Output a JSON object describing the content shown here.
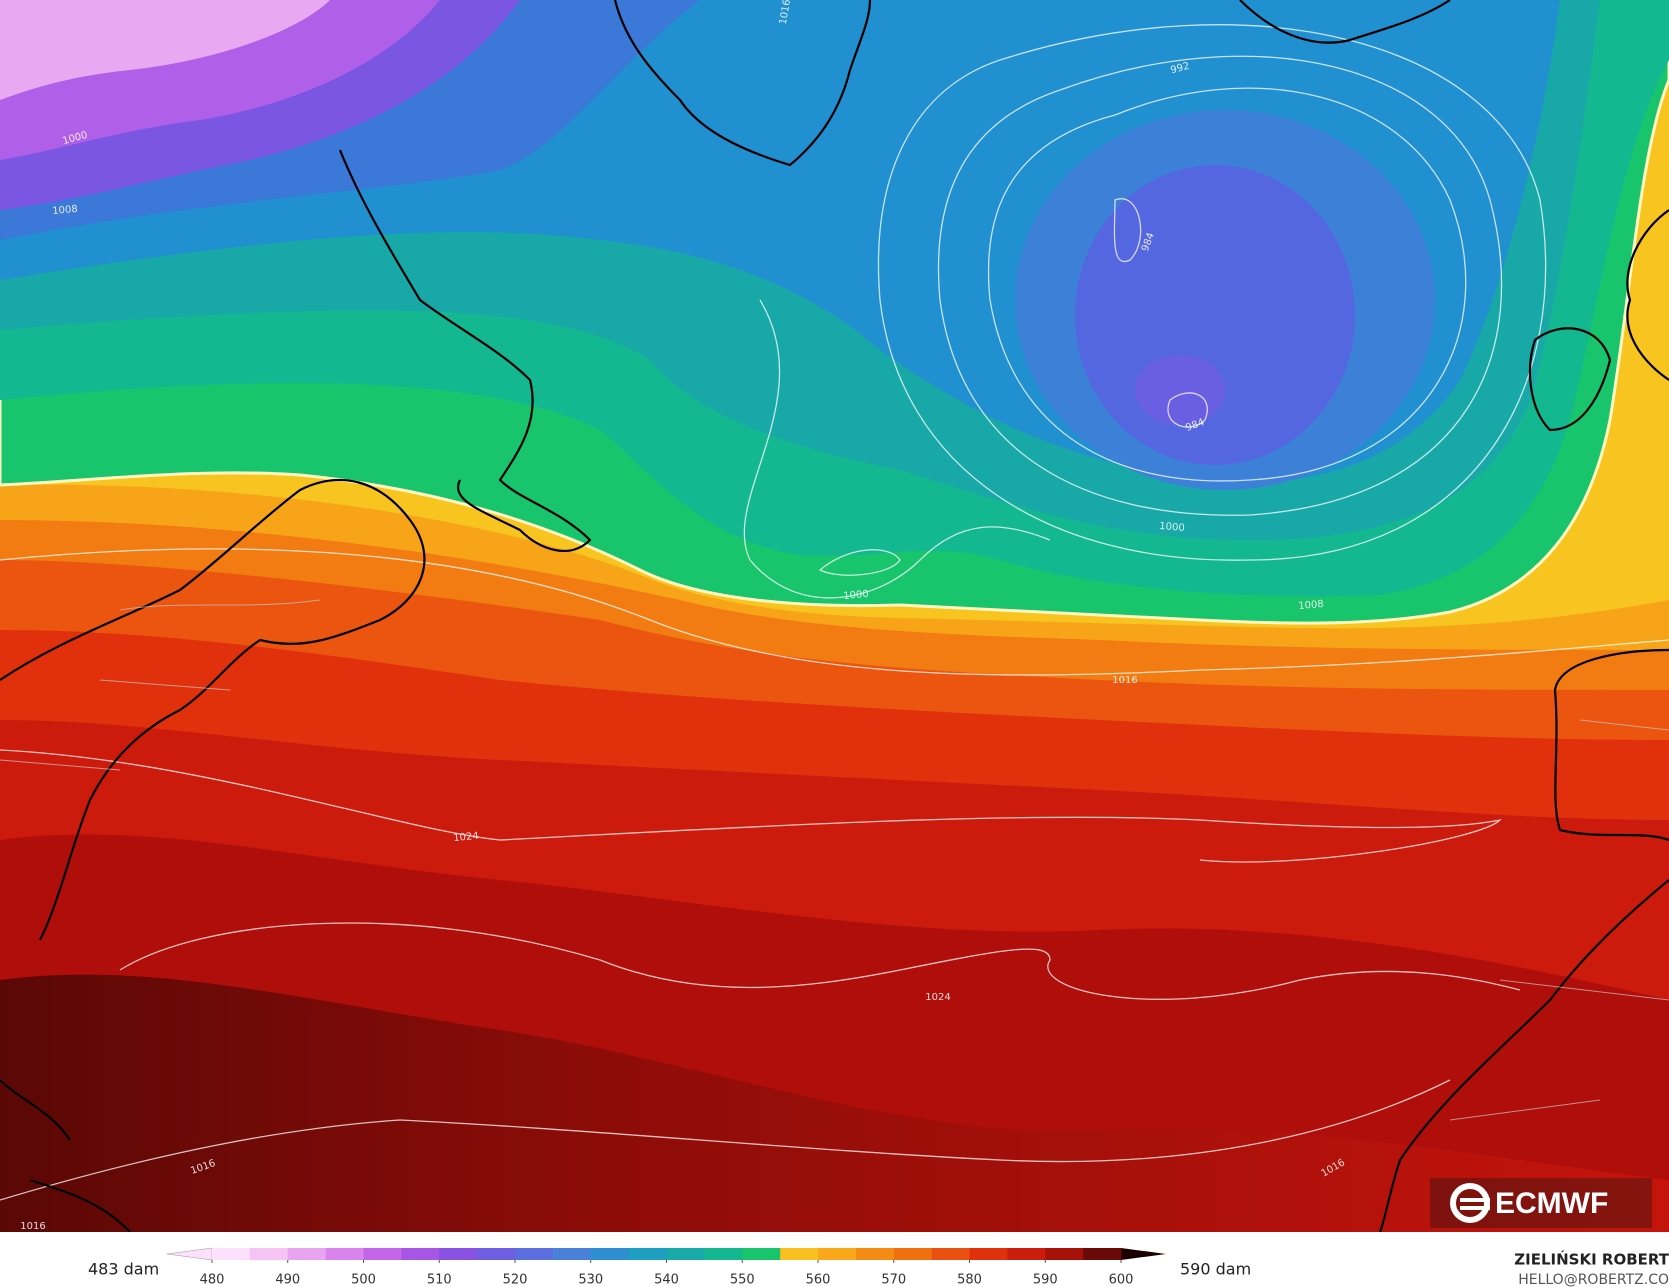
{
  "map": {
    "isobar_labels": [
      "1016",
      "1000",
      "1008",
      "992",
      "984",
      "984",
      "1000",
      "1000",
      "1008",
      "1016",
      "1024",
      "1024",
      "1016",
      "1016",
      "1016"
    ]
  },
  "colorbar": {
    "min_label": "483 dam",
    "max_label": "590 dam",
    "lim": [
      480,
      600
    ],
    "ticks": [
      480,
      490,
      500,
      510,
      520,
      530,
      540,
      550,
      560,
      570,
      580,
      590,
      600
    ],
    "colors": [
      "#fde0fb",
      "#f5c4f5",
      "#e8a4f0",
      "#d884ec",
      "#c466e8",
      "#a656e4",
      "#8a52e2",
      "#6e5ee0",
      "#5a6ee0",
      "#4880da",
      "#2e8fd0",
      "#1e9ec0",
      "#18aaa8",
      "#14b890",
      "#18c46c",
      "#f8c020",
      "#f8a818",
      "#f48c14",
      "#f07010",
      "#ea5010",
      "#e0300c",
      "#cc1c0c",
      "#a8100a",
      "#6a0a08"
    ]
  },
  "credits": {
    "author": "ZIELIŃSKI ROBERT",
    "contact": "HELLO@ROBERTZ.CO",
    "source": "ECMWF"
  }
}
